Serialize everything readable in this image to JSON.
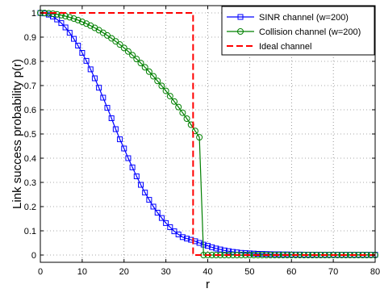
{
  "chart_data": {
    "type": "line",
    "xlabel": "r",
    "ylabel": "Link success probability p(r)",
    "xlim": [
      0,
      80
    ],
    "ylim": [
      -0.03,
      1.03
    ],
    "xticks": [
      0,
      10,
      20,
      30,
      40,
      50,
      60,
      70,
      80
    ],
    "yticks": [
      0,
      0.1,
      0.2,
      0.3,
      0.4,
      0.5,
      0.6,
      0.7,
      0.8,
      0.9,
      1
    ],
    "xtick_labels": [
      "0",
      "10",
      "20",
      "30",
      "40",
      "50",
      "60",
      "70",
      "80"
    ],
    "ytick_labels": [
      "0",
      "0.1",
      "0.2",
      "0.3",
      "0.4",
      "0.5",
      "0.6",
      "0.7",
      "0.8",
      "0.9",
      "1"
    ],
    "grid": true,
    "legend_position": "top-right",
    "series": [
      {
        "name": "SINR channel (w=200)",
        "color": "#0000ff",
        "marker": "square",
        "style": "solid",
        "x": [
          0,
          1,
          2,
          3,
          4,
          5,
          6,
          7,
          8,
          9,
          10,
          11,
          12,
          13,
          14,
          15,
          16,
          17,
          18,
          19,
          20,
          21,
          22,
          23,
          24,
          25,
          26,
          27,
          28,
          29,
          30,
          31,
          32,
          33,
          34,
          35,
          36,
          37,
          38,
          39,
          40,
          41,
          42,
          43,
          44,
          45,
          46,
          47,
          48,
          49,
          50,
          51,
          52,
          53,
          54,
          55,
          56,
          57,
          58,
          59,
          60,
          61,
          62,
          63,
          64,
          65,
          66,
          67,
          68,
          69,
          70,
          71,
          72,
          73,
          74,
          75,
          76,
          77,
          78,
          79,
          80
        ],
        "y": [
          1.0,
          0.998,
          0.993,
          0.985,
          0.973,
          0.958,
          0.94,
          0.918,
          0.893,
          0.865,
          0.835,
          0.802,
          0.767,
          0.73,
          0.691,
          0.65,
          0.608,
          0.565,
          0.52,
          0.478,
          0.44,
          0.4,
          0.362,
          0.325,
          0.29,
          0.258,
          0.228,
          0.2,
          0.175,
          0.153,
          0.132,
          0.115,
          0.098,
          0.085,
          0.074,
          0.068,
          0.063,
          0.057,
          0.05,
          0.043,
          0.038,
          0.032,
          0.027,
          0.023,
          0.019,
          0.016,
          0.013,
          0.011,
          0.009,
          0.008,
          0.007,
          0.006,
          0.005,
          0.0045,
          0.004,
          0.0035,
          0.003,
          0.003,
          0.0025,
          0.0025,
          0.002,
          0.002,
          0.002,
          0.0015,
          0.0015,
          0.0015,
          0.001,
          0.001,
          0.001,
          0.001,
          0.001,
          0.001,
          0.001,
          0.001,
          0.001,
          0.001,
          0.001,
          0.001,
          0.001,
          0.001,
          0.001
        ]
      },
      {
        "name": "Collision channel (w=200)",
        "color": "#008000",
        "marker": "circle",
        "style": "solid",
        "x": [
          0,
          1,
          2,
          3,
          4,
          5,
          6,
          7,
          8,
          9,
          10,
          11,
          12,
          13,
          14,
          15,
          16,
          17,
          18,
          19,
          20,
          21,
          22,
          23,
          24,
          25,
          26,
          27,
          28,
          29,
          30,
          31,
          32,
          33,
          34,
          35,
          36,
          37,
          38,
          39,
          40,
          41,
          42,
          43,
          44,
          45,
          46,
          47,
          48,
          49,
          50,
          51,
          52,
          53,
          54,
          55,
          56,
          57,
          58,
          59,
          60,
          61,
          62,
          63,
          64,
          65,
          66,
          67,
          68,
          69,
          70,
          71,
          72,
          73,
          74,
          75,
          76,
          77,
          78,
          79,
          80
        ],
        "y": [
          1.0,
          0.9996,
          0.9985,
          0.9967,
          0.9941,
          0.9908,
          0.9867,
          0.982,
          0.9765,
          0.9703,
          0.9633,
          0.9557,
          0.9474,
          0.9383,
          0.9286,
          0.9181,
          0.907,
          0.8951,
          0.8826,
          0.8694,
          0.8554,
          0.8408,
          0.8255,
          0.8095,
          0.7928,
          0.7754,
          0.7573,
          0.7385,
          0.719,
          0.6988,
          0.678,
          0.6564,
          0.6342,
          0.6112,
          0.5876,
          0.5633,
          0.5383,
          0.5126,
          0.4863,
          0.0,
          0.0,
          0.0,
          0.0,
          0.0,
          0.0,
          0.0,
          0.0,
          0.0,
          0.0,
          0.0,
          0.0,
          0.0,
          0.0,
          0.0,
          0.0,
          0.0,
          0.0,
          0.0,
          0.0,
          0.0,
          0.0,
          0.0,
          0.0,
          0.0,
          0.0,
          0.0,
          0.0,
          0.0,
          0.0,
          0.0,
          0.0,
          0.0,
          0.0,
          0.0,
          0.0,
          0.0,
          0.0,
          0.0,
          0.0,
          0.0,
          0.0
        ]
      },
      {
        "name": "Ideal channel",
        "color": "#ff0000",
        "marker": "none",
        "style": "dashed",
        "x": [
          0,
          36.5,
          36.5,
          80
        ],
        "y": [
          1,
          1,
          0,
          0
        ]
      }
    ]
  }
}
